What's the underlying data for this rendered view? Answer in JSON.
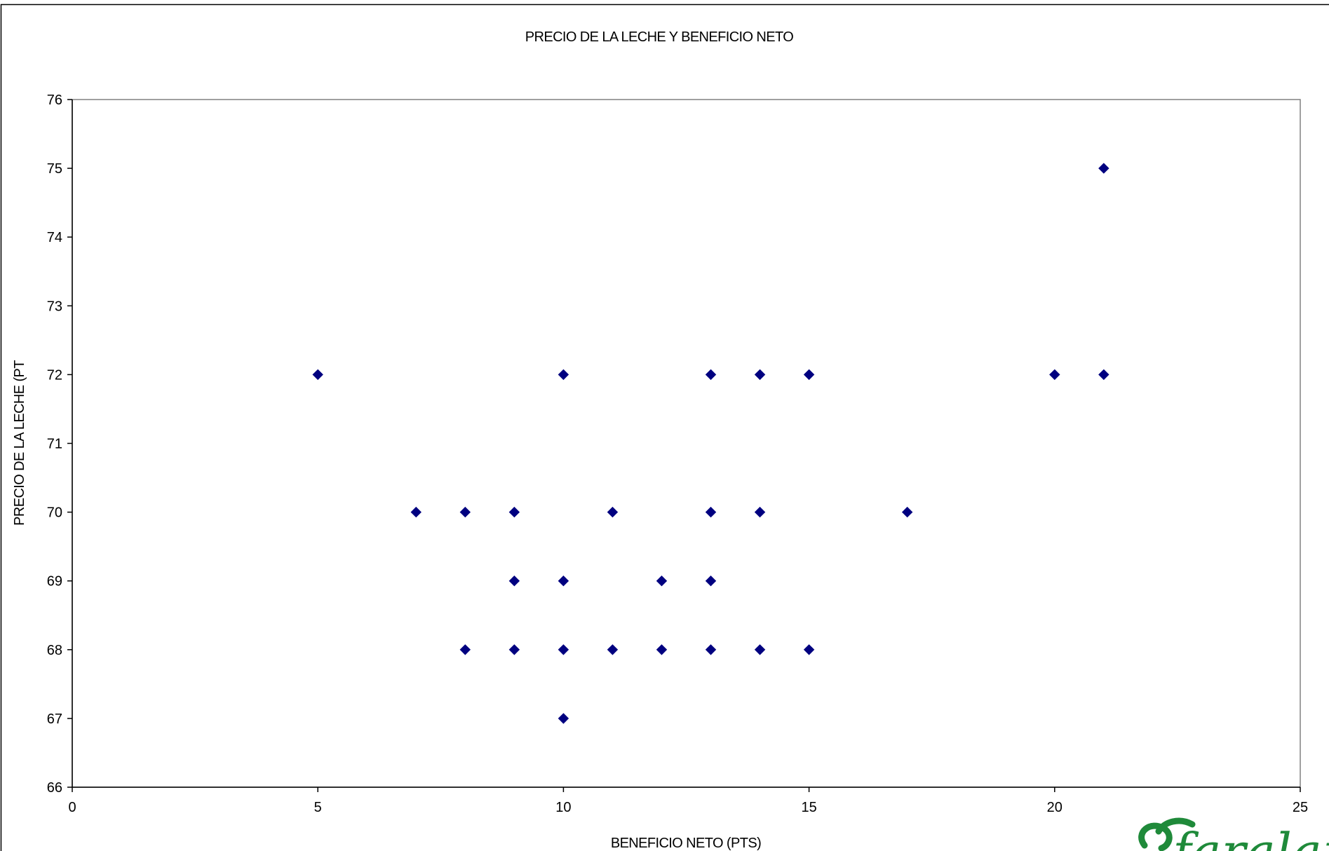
{
  "chart_data": {
    "type": "scatter",
    "title": "PRECIO DE LA  LECHE Y  BENEFICIO NETO",
    "xlabel": "BENEFICIO NETO (PTS)",
    "ylabel": "PRECIO DE LA LECHE (PT",
    "xlim": [
      0,
      25
    ],
    "ylim": [
      66,
      76
    ],
    "xticks": [
      "0",
      "5",
      "10",
      "15",
      "20",
      "25"
    ],
    "yticks": [
      "66",
      "67",
      "68",
      "69",
      "70",
      "71",
      "72",
      "73",
      "74",
      "75",
      "76"
    ],
    "grid": false,
    "legend": "none",
    "marker": "diamond",
    "marker_color": "#000080",
    "points": [
      {
        "x": 5,
        "y": 72
      },
      {
        "x": 7,
        "y": 70
      },
      {
        "x": 8,
        "y": 70
      },
      {
        "x": 8,
        "y": 68
      },
      {
        "x": 9,
        "y": 70
      },
      {
        "x": 9,
        "y": 69
      },
      {
        "x": 9,
        "y": 68
      },
      {
        "x": 10,
        "y": 72
      },
      {
        "x": 10,
        "y": 69
      },
      {
        "x": 10,
        "y": 68
      },
      {
        "x": 10,
        "y": 67
      },
      {
        "x": 11,
        "y": 70
      },
      {
        "x": 11,
        "y": 68
      },
      {
        "x": 12,
        "y": 69
      },
      {
        "x": 12,
        "y": 68
      },
      {
        "x": 13,
        "y": 72
      },
      {
        "x": 13,
        "y": 70
      },
      {
        "x": 13,
        "y": 69
      },
      {
        "x": 13,
        "y": 68
      },
      {
        "x": 14,
        "y": 72
      },
      {
        "x": 14,
        "y": 70
      },
      {
        "x": 14,
        "y": 68
      },
      {
        "x": 15,
        "y": 72
      },
      {
        "x": 15,
        "y": 68
      },
      {
        "x": 17,
        "y": 70
      },
      {
        "x": 20,
        "y": 72
      },
      {
        "x": 21,
        "y": 75
      },
      {
        "x": 21,
        "y": 72
      }
    ]
  },
  "logo": {
    "text": "faralapa",
    "color": "#1f8a3a"
  }
}
